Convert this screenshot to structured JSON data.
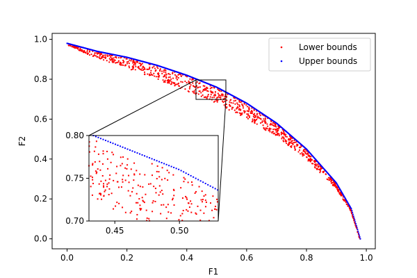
{
  "chart_data": {
    "type": "scatter",
    "title": "",
    "xlabel": "F1",
    "ylabel": "F2",
    "xlim": [
      -0.05,
      1.03
    ],
    "ylim": [
      -0.05,
      1.03
    ],
    "xticks": [
      "0.0",
      "0.2",
      "0.4",
      "0.6",
      "0.8",
      "1.0"
    ],
    "yticks": [
      "0.0",
      "0.2",
      "0.4",
      "0.6",
      "0.8",
      "1.0"
    ],
    "legend_position": "top-right",
    "series": [
      {
        "name": "Lower bounds",
        "color": "#ff0000",
        "marker": "dot",
        "description": "Scattered band of points lying below the upper front, from about (0.0, 0.97) down to (0.98, 0.0)"
      },
      {
        "name": "Upper bounds",
        "color": "#0000ff",
        "marker": "dot",
        "description": "Points tracing the outer Pareto front from about (0.0, 0.98) to (0.98, 0.0)"
      }
    ],
    "front_shape": {
      "upper_y_at_x": [
        [
          0.0,
          0.98
        ],
        [
          0.1,
          0.94
        ],
        [
          0.2,
          0.91
        ],
        [
          0.3,
          0.87
        ],
        [
          0.4,
          0.82
        ],
        [
          0.5,
          0.76
        ],
        [
          0.6,
          0.68
        ],
        [
          0.7,
          0.58
        ],
        [
          0.8,
          0.45
        ],
        [
          0.9,
          0.28
        ],
        [
          0.95,
          0.15
        ],
        [
          0.98,
          0.0
        ]
      ]
    },
    "inset": {
      "xlim": [
        0.43,
        0.53
      ],
      "ylim": [
        0.7,
        0.8
      ],
      "xticks": [
        "0.45",
        "0.50"
      ],
      "yticks": [
        "0.70",
        "0.75",
        "0.80"
      ],
      "zoom_box": {
        "x": [
          0.43,
          0.53
        ],
        "y": [
          0.7,
          0.8
        ]
      }
    }
  }
}
